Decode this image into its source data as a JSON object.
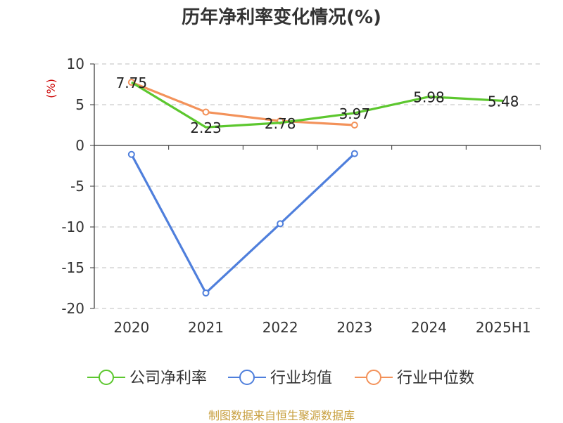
{
  "chart_data": {
    "type": "line",
    "title": "历年净利率变化情况(%)",
    "ylabel": "(%)",
    "categories": [
      "2020",
      "2021",
      "2022",
      "2023",
      "2024",
      "2025H1"
    ],
    "ylim": [
      -20,
      10
    ],
    "yticks": [
      10,
      5,
      0,
      -5,
      -10,
      -15,
      -20
    ],
    "grid": true,
    "legend_position": "bottom",
    "series": [
      {
        "name": "公司净利率",
        "color": "#5cc72e",
        "values": [
          7.75,
          2.23,
          2.78,
          3.97,
          5.98,
          5.48
        ],
        "labels": [
          "7.75",
          "2.23",
          "2.78",
          "3.97",
          "5.98",
          "5.48"
        ]
      },
      {
        "name": "行业均值",
        "color": "#4f7fdc",
        "values": [
          -1.1,
          -18.1,
          -9.6,
          -1.0,
          null,
          null
        ]
      },
      {
        "name": "行业中位数",
        "color": "#f3925a",
        "values": [
          7.75,
          4.1,
          3.0,
          2.5,
          null,
          null
        ]
      }
    ]
  },
  "footer": {
    "source": "制图数据来自恒生聚源数据库"
  }
}
